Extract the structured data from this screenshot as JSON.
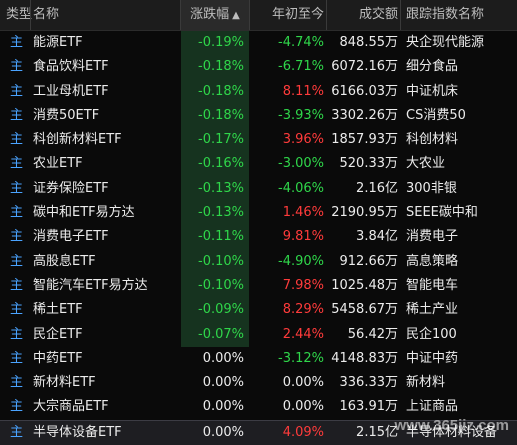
{
  "header": {
    "type": "类型",
    "name": "名称",
    "change": "涨跌幅",
    "sort_indicator": "▲",
    "ytd": "年初至今",
    "volume": "成交额",
    "index": "跟踪指数名称"
  },
  "colors": {
    "up": "#ff3b3b",
    "down": "#2fd64a",
    "type": "#4aa3ff",
    "change_highlight": "#16331f"
  },
  "rows": [
    {
      "type": "主",
      "name": "能源ETF",
      "change": "-0.19%",
      "ytd": "-4.74%",
      "ytd_dir": "down",
      "volume": "848.55万",
      "index": "央企现代能源"
    },
    {
      "type": "主",
      "name": "食品饮料ETF",
      "change": "-0.18%",
      "ytd": "-6.71%",
      "ytd_dir": "down",
      "volume": "6072.16万",
      "index": "细分食品"
    },
    {
      "type": "主",
      "name": "工业母机ETF",
      "change": "-0.18%",
      "ytd": "8.11%",
      "ytd_dir": "up",
      "volume": "6166.03万",
      "index": "中证机床"
    },
    {
      "type": "主",
      "name": "消费50ETF",
      "change": "-0.18%",
      "ytd": "-3.93%",
      "ytd_dir": "down",
      "volume": "3302.26万",
      "index": "CS消费50"
    },
    {
      "type": "主",
      "name": "科创新材料ETF",
      "change": "-0.17%",
      "ytd": "3.96%",
      "ytd_dir": "up",
      "volume": "1857.93万",
      "index": "科创材料"
    },
    {
      "type": "主",
      "name": "农业ETF",
      "change": "-0.16%",
      "ytd": "-3.00%",
      "ytd_dir": "down",
      "volume": "520.33万",
      "index": "大农业"
    },
    {
      "type": "主",
      "name": "证券保险ETF",
      "change": "-0.13%",
      "ytd": "-4.06%",
      "ytd_dir": "down",
      "volume": "2.16亿",
      "index": "300非银"
    },
    {
      "type": "主",
      "name": "碳中和ETF易方达",
      "change": "-0.13%",
      "ytd": "1.46%",
      "ytd_dir": "up",
      "volume": "2190.95万",
      "index": "SEEE碳中和"
    },
    {
      "type": "主",
      "name": "消费电子ETF",
      "change": "-0.11%",
      "ytd": "9.81%",
      "ytd_dir": "up",
      "volume": "3.84亿",
      "index": "消费电子"
    },
    {
      "type": "主",
      "name": "高股息ETF",
      "change": "-0.10%",
      "ytd": "-4.90%",
      "ytd_dir": "down",
      "volume": "912.66万",
      "index": "高息策略"
    },
    {
      "type": "主",
      "name": "智能汽车ETF易方达",
      "change": "-0.10%",
      "ytd": "7.98%",
      "ytd_dir": "up",
      "volume": "1025.48万",
      "index": "智能电车"
    },
    {
      "type": "主",
      "name": "稀土ETF",
      "change": "-0.09%",
      "ytd": "8.29%",
      "ytd_dir": "up",
      "volume": "5458.67万",
      "index": "稀土产业"
    },
    {
      "type": "主",
      "name": "民企ETF",
      "change": "-0.07%",
      "ytd": "2.44%",
      "ytd_dir": "up",
      "volume": "56.42万",
      "index": "民企100"
    },
    {
      "type": "主",
      "name": "中药ETF",
      "change": "0.00%",
      "ytd": "-3.12%",
      "ytd_dir": "down",
      "volume": "4148.83万",
      "index": "中证中药"
    },
    {
      "type": "主",
      "name": "新材料ETF",
      "change": "0.00%",
      "ytd": "0.00%",
      "ytd_dir": "flat",
      "volume": "336.33万",
      "index": "新材料"
    },
    {
      "type": "主",
      "name": "大宗商品ETF",
      "change": "0.00%",
      "ytd": "0.00%",
      "ytd_dir": "flat",
      "volume": "163.91万",
      "index": "上证商品"
    },
    {
      "type": "主",
      "name": "半导体设备ETF",
      "change": "0.00%",
      "ytd": "4.09%",
      "ytd_dir": "up",
      "volume": "2.15亿",
      "index": "半导体材料设备"
    }
  ],
  "watermark": "www.365jiz.com"
}
